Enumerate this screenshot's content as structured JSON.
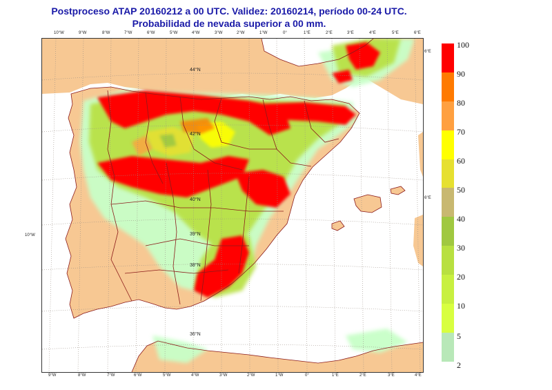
{
  "title": {
    "line1": "Postproceso ATAP 20160212 a 00 UTC. Validez: 20160214, período 00-24 UTC.",
    "line2": "Probabilidad de nevada superior a 00 mm."
  },
  "map": {
    "land_color": "#f7c893",
    "sea_color": "#ffffff",
    "border_color": "#8b1a1a",
    "top_ticks": [
      "10°W",
      "9°W",
      "8°W",
      "7°W",
      "6°W",
      "5°W",
      "4°W",
      "3°W",
      "2°W",
      "1°W",
      "0°",
      "1°E",
      "2°E",
      "3°E",
      "4°E",
      "5°E",
      "6°E"
    ],
    "bottom_ticks": [
      "9°W",
      "8°W",
      "7°W",
      "6°W",
      "5°W",
      "4°W",
      "3°W",
      "2°W",
      "1°W",
      "0°",
      "1°E",
      "2°E",
      "3°E",
      "4°E"
    ],
    "right_ticks": [
      "6°E",
      "6°E"
    ],
    "left_ticks": [
      "10°W"
    ],
    "lat_labels": [
      "44°N",
      "42°N",
      "40°N",
      "39°N",
      "38°N",
      "36°N"
    ]
  },
  "legend": {
    "labels": [
      "100",
      "90",
      "80",
      "70",
      "60",
      "50",
      "40",
      "30",
      "20",
      "10",
      "5",
      "2"
    ],
    "colors": [
      "#ff0000",
      "#ff7a00",
      "#ffa040",
      "#ffff00",
      "#e6e030",
      "#c8b870",
      "#a0c840",
      "#b8e040",
      "#c8f040",
      "#d8ff40",
      "#b8e8b8",
      "#c8ffc8"
    ]
  }
}
